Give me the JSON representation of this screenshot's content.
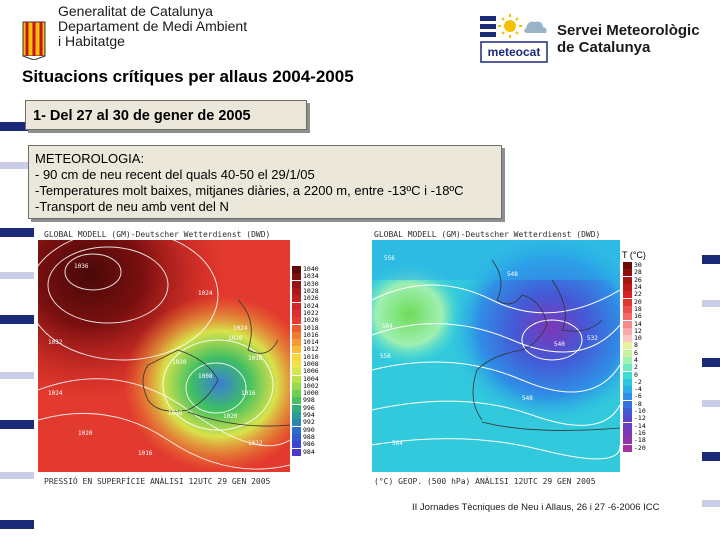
{
  "header": {
    "org_lines": [
      "Generalitat de Catalunya",
      "Departament de Medi Ambient",
      "i Habitatge"
    ],
    "title": "Situacions crítiques per allaus 2004-2005",
    "logo_right_text": "meteocat",
    "smc_lines": [
      "Servei Meteorològic",
      "de Catalunya"
    ]
  },
  "event": {
    "label": "1- Del 27 al 30 de gener de 2005"
  },
  "meteorology": {
    "heading": "METEOROLOGIA:",
    "items": [
      "- 90 cm de neu recent del quals 40-50 el 29/1/05",
      "-Temperatures molt baixes, mitjanes diàries, a 2200 m, entre -13ºC i -18ºC",
      "-Transport de neu amb vent del N"
    ]
  },
  "maps": {
    "left": {
      "header": "GLOBAL MODELL (GM)-Deutscher Wetterdienst (DWD)",
      "footer": "PRESSIÓ EN SUPERFÍCIE    ANÀLISI 12UTC 29 GEN 2005",
      "contour_labels": [
        "1036",
        "1024",
        "1032",
        "1024",
        "1024",
        "1020",
        "1016",
        "1020",
        "1016",
        "1012",
        "1008",
        "1020",
        "1016",
        "1020",
        "1016"
      ],
      "legend": [
        "1040",
        "1034",
        "1030",
        "1028",
        "1026",
        "1024",
        "1022",
        "1020",
        "1018",
        "1016",
        "1014",
        "1012",
        "1010",
        "1008",
        "1006",
        "1004",
        "1002",
        "1000",
        "998",
        "996",
        "994",
        "992",
        "990",
        "988",
        "986",
        "984"
      ],
      "legend_colors": [
        "#5a0a0a",
        "#7a1010",
        "#941515",
        "#aa1a1a",
        "#be1f1f",
        "#d22626",
        "#e02d2d",
        "#ea3a2e",
        "#ef5a2f",
        "#f27a30",
        "#f59a33",
        "#f8ba38",
        "#f9d63e",
        "#f0e44a",
        "#d6e64a",
        "#b8e24a",
        "#96d94c",
        "#6fcd52",
        "#4cbf5e",
        "#35ae78",
        "#2a9c96",
        "#2a85b0",
        "#2c6ec4",
        "#3358cf",
        "#3d46d3",
        "#4a38c8"
      ]
    },
    "right": {
      "header": "GLOBAL MODELL (GM)-Deutscher Wetterdienst (DWD)",
      "footer": "(°C)   GEOP. (500 hPa)    ANÀLISI 12UTC 29 GEN 2005",
      "unit": "T (°C)",
      "contour_labels": [
        "556",
        "564",
        "548",
        "540",
        "532",
        "556",
        "564",
        "548"
      ],
      "legend": [
        "30",
        "28",
        "26",
        "24",
        "22",
        "20",
        "18",
        "16",
        "14",
        "12",
        "10",
        "8",
        "6",
        "4",
        "2",
        "0",
        "-2",
        "-4",
        "-6",
        "-8",
        "-10",
        "-12",
        "-14",
        "-16",
        "-18",
        "-20"
      ],
      "legend_colors": [
        "#6a0a0a",
        "#8c1010",
        "#a81515",
        "#c01b1b",
        "#d52222",
        "#e33232",
        "#ee4e4e",
        "#f36a6a",
        "#f78a8a",
        "#f9a9a9",
        "#fbc6c6",
        "#e7f39a",
        "#c8f0a0",
        "#9ff0b2",
        "#6fe9c2",
        "#3fdcd2",
        "#2cc6e0",
        "#2aaeea",
        "#2f8fe6",
        "#3572de",
        "#4459d6",
        "#5848cc",
        "#6a3ec2",
        "#7d38b8",
        "#9135ad",
        "#a733a2"
      ]
    }
  },
  "footer_note": "II Jornades Tècniques de Neu i Allaus, 26 i 27 -6-2006 ICC",
  "colors": {
    "stripe_dark": "#1b2a78",
    "stripe_light": "#c9cde6",
    "box_bg": "#ebe7da"
  }
}
